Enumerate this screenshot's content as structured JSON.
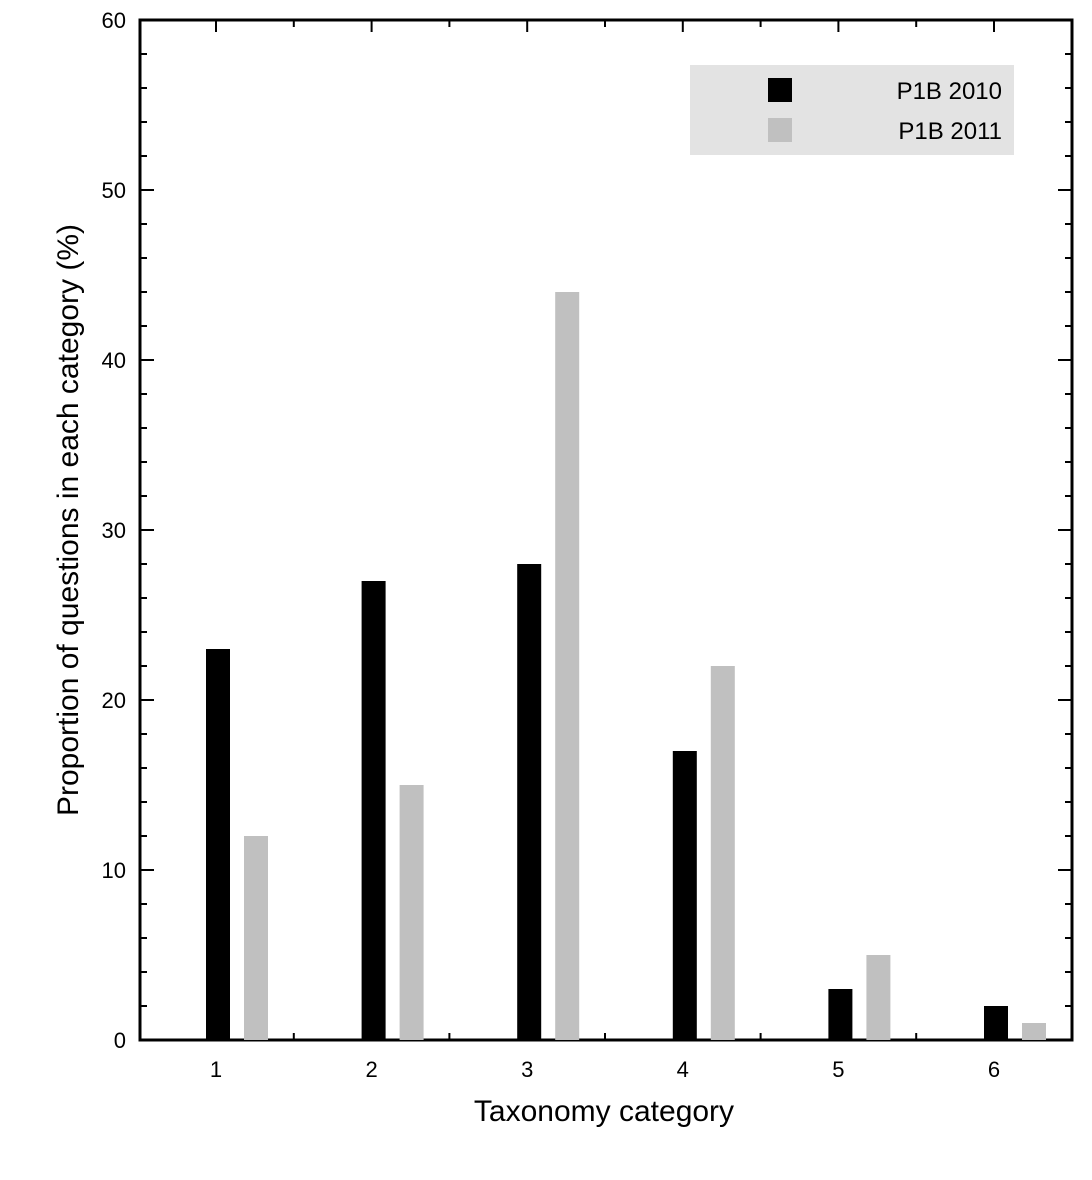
{
  "chart_data": {
    "type": "bar",
    "title": "",
    "xlabel": "Taxonomy category",
    "ylabel": "Proportion of questions in each category (%)",
    "categories": [
      "1",
      "2",
      "3",
      "4",
      "5",
      "6"
    ],
    "series": [
      {
        "name": "P1B 2010",
        "color": "#000000",
        "values": [
          23,
          27,
          28,
          17,
          3,
          2
        ]
      },
      {
        "name": "P1B 2011",
        "color": "#c0c0c0",
        "values": [
          12,
          15,
          44,
          22,
          5,
          1
        ]
      }
    ],
    "ylim": [
      0,
      60
    ],
    "yticks": [
      "0",
      "10",
      "20",
      "30",
      "40",
      "50",
      "60"
    ],
    "y_minor_step": 2,
    "grid": false,
    "legend": {
      "position": "top-right",
      "background": "#e3e3e3"
    }
  }
}
